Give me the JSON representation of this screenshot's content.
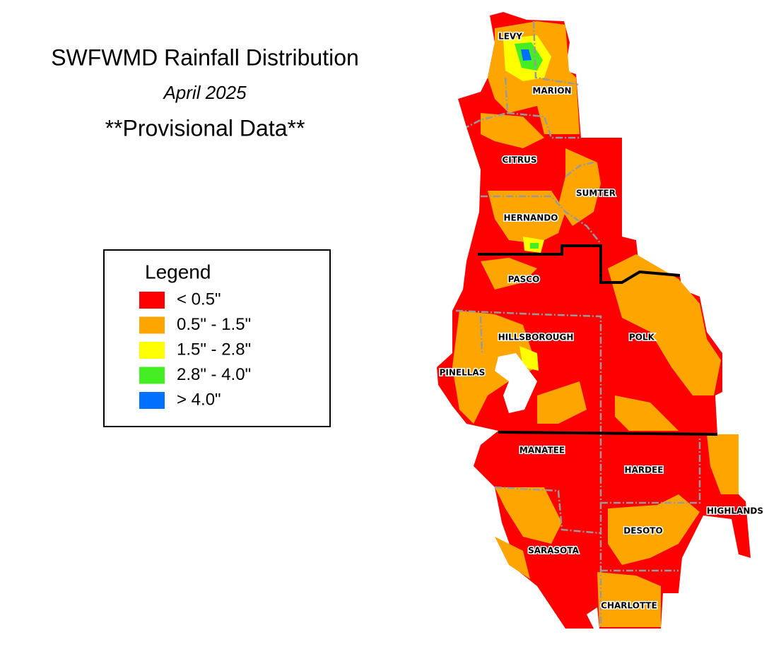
{
  "header": {
    "title": "SWFWMD Rainfall Distribution",
    "subtitle": "April 2025",
    "note": "**Provisional Data**"
  },
  "legend": {
    "title": "Legend",
    "items": [
      {
        "label": "<  0.5\"",
        "color": "#ff0000"
      },
      {
        "label": "0.5\" - 1.5\"",
        "color": "#ffa500"
      },
      {
        "label": "1.5\" - 2.8\"",
        "color": "#ffff00"
      },
      {
        "label": "2.8\" - 4.0\"",
        "color": "#44ee22"
      },
      {
        "label": "> 4.0\"",
        "color": "#0070ff"
      }
    ]
  },
  "counties": [
    "LEVY",
    "MARION",
    "CITRUS",
    "SUMTER",
    "HERNANDO",
    "PASCO",
    "HILLSBOROUGH",
    "POLK",
    "PINELLAS",
    "MANATEE",
    "HARDEE",
    "HIGHLANDS",
    "DESOTO",
    "SARASOTA",
    "CHARLOTTE"
  ]
}
